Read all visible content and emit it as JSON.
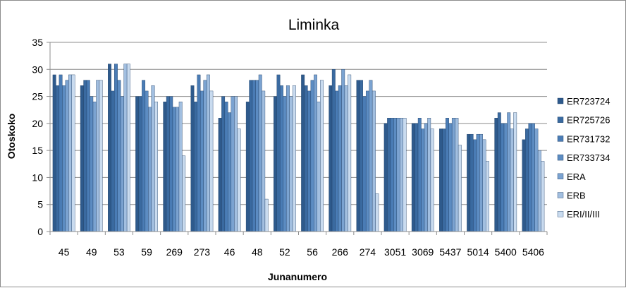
{
  "chart_data": {
    "type": "bar",
    "title": "Liminka",
    "xlabel": "Junanumero",
    "ylabel": "Otoskoko",
    "ylim": [
      0,
      35
    ],
    "yticks": [
      0,
      5,
      10,
      15,
      20,
      25,
      30,
      35
    ],
    "grid": true,
    "legend_position": "right",
    "categories": [
      "45",
      "49",
      "53",
      "59",
      "269",
      "273",
      "46",
      "48",
      "52",
      "56",
      "266",
      "274",
      "3051",
      "3069",
      "5437",
      "5014",
      "5400",
      "5406"
    ],
    "series": [
      {
        "name": "ER723724",
        "color": "#2e5a8c",
        "values": [
          29,
          27,
          31,
          25,
          24,
          27,
          21,
          24,
          25,
          29,
          27,
          28,
          20,
          20,
          19,
          18,
          21,
          17
        ]
      },
      {
        "name": "ER725726",
        "color": "#3a6aa0",
        "values": [
          27,
          28,
          26,
          25,
          25,
          24,
          25,
          28,
          29,
          27,
          30,
          28,
          21,
          20,
          19,
          18,
          22,
          19
        ]
      },
      {
        "name": "ER731732",
        "color": "#4a7cb5",
        "values": [
          29,
          28,
          31,
          28,
          25,
          29,
          24,
          28,
          27,
          26,
          26,
          25,
          21,
          21,
          21,
          17,
          20,
          20
        ]
      },
      {
        "name": "ER733734",
        "color": "#5c8cc2",
        "values": [
          27,
          25,
          28,
          26,
          23,
          26,
          22,
          28,
          25,
          28,
          27,
          26,
          21,
          19,
          20,
          18,
          20,
          20
        ]
      },
      {
        "name": "ERA",
        "color": "#7ba3d1",
        "values": [
          28,
          24,
          25,
          23,
          23,
          28,
          25,
          29,
          27,
          29,
          30,
          28,
          21,
          20,
          21,
          18,
          22,
          19
        ]
      },
      {
        "name": "ERB",
        "color": "#a2bfe0",
        "values": [
          29,
          28,
          31,
          27,
          24,
          29,
          25,
          26,
          25,
          24,
          27,
          26,
          21,
          21,
          21,
          17,
          19,
          15
        ]
      },
      {
        "name": "ERI/II/III",
        "color": "#c9dbef",
        "values": [
          29,
          28,
          31,
          24,
          14,
          26,
          19,
          6,
          27,
          28,
          29,
          7,
          21,
          19,
          16,
          13,
          22,
          13
        ]
      }
    ]
  }
}
